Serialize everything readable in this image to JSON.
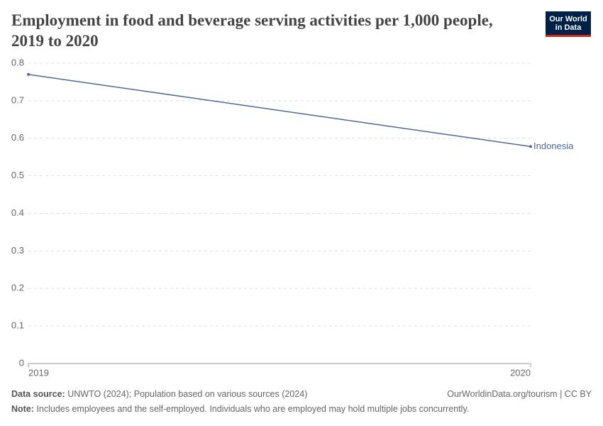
{
  "chart_data": {
    "type": "line",
    "title": "Employment in food and beverage serving activities per 1,000 people, 2019 to 2020",
    "logo": [
      "Our World",
      "in Data"
    ],
    "x": [
      2019,
      2020
    ],
    "xlim": [
      2019,
      2020
    ],
    "xticks": [
      2019,
      2020
    ],
    "series": [
      {
        "name": "Indonesia",
        "color": "#4c6a9c",
        "values": [
          0.77,
          0.578
        ]
      }
    ],
    "ylim": [
      0,
      0.8
    ],
    "yticks": [
      0,
      0.1,
      0.2,
      0.3,
      0.4,
      0.5,
      0.6,
      0.7,
      0.8
    ],
    "grid": true,
    "source_label": "Data source:",
    "source": "UNWTO (2024); Population based on various sources (2024)",
    "url": "OurWorldinData.org/tourism | CC BY",
    "note_label": "Note:",
    "note": "Includes employees and the self-employed. Individuals who are employed may hold multiple jobs concurrently."
  }
}
